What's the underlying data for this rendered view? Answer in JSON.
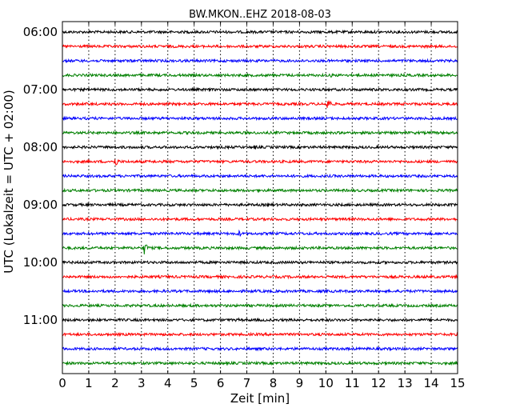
{
  "chart_data": {
    "type": "line",
    "title": "BW.MKON..EHZ 2018-08-03",
    "xlabel": "Zeit  [min]",
    "ylabel": "UTC (Lokalzeit = UTC + 02:00)",
    "xlim": [
      0,
      15
    ],
    "x_ticks": [
      0,
      1,
      2,
      3,
      4,
      5,
      6,
      7,
      8,
      9,
      10,
      11,
      12,
      13,
      14,
      15
    ],
    "y_tick_labels": [
      "06:00",
      "07:00",
      "08:00",
      "09:00",
      "10:00",
      "11:00"
    ],
    "y_tick_rows": [
      0,
      4,
      8,
      12,
      16,
      20
    ],
    "vertical_grid": "dotted",
    "traces_per_hour": 4,
    "row_minutes": 15,
    "colors": [
      "#000000",
      "#ff0000",
      "#0000ff",
      "#008000"
    ],
    "traces": [
      {
        "start": "06:00",
        "events": []
      },
      {
        "start": "06:15",
        "events": []
      },
      {
        "start": "06:30",
        "events": []
      },
      {
        "start": "06:45",
        "events": [
          {
            "t": 10.2,
            "amp": 0.3
          }
        ]
      },
      {
        "start": "07:00",
        "events": []
      },
      {
        "start": "07:15",
        "events": [
          {
            "t": 0.85,
            "amp": 0.3
          },
          {
            "t": 7.7,
            "amp": 0.2
          },
          {
            "t": 10.05,
            "amp": 1.0
          }
        ]
      },
      {
        "start": "07:30",
        "events": []
      },
      {
        "start": "07:45",
        "events": []
      },
      {
        "start": "08:00",
        "events": [
          {
            "t": 7.3,
            "amp": 0.4
          },
          {
            "t": 15.0,
            "amp": 0.45
          }
        ]
      },
      {
        "start": "08:15",
        "events": [
          {
            "t": 2.0,
            "amp": 0.75
          }
        ]
      },
      {
        "start": "08:30",
        "events": []
      },
      {
        "start": "08:45",
        "events": [
          {
            "t": 1.2,
            "amp": 0.2
          }
        ]
      },
      {
        "start": "09:00",
        "events": [
          {
            "t": 5.3,
            "amp": 0.2
          },
          {
            "t": 7.8,
            "amp": 0.35
          }
        ]
      },
      {
        "start": "09:15",
        "events": []
      },
      {
        "start": "09:30",
        "events": [
          {
            "t": 5.8,
            "amp": 0.2
          },
          {
            "t": 6.7,
            "amp": 0.55
          }
        ]
      },
      {
        "start": "09:45",
        "events": [
          {
            "t": 3.1,
            "amp": 1.0
          }
        ]
      },
      {
        "start": "10:00",
        "events": [
          {
            "t": 0.3,
            "amp": 0.25
          },
          {
            "t": 0.85,
            "amp": 0.3
          },
          {
            "t": 7.0,
            "amp": 0.2
          },
          {
            "t": 10.3,
            "amp": 0.25
          },
          {
            "t": 11.1,
            "amp": 0.2
          },
          {
            "t": 13.7,
            "amp": 0.2
          }
        ]
      },
      {
        "start": "10:15",
        "events": [
          {
            "t": 7.6,
            "amp": 0.15
          }
        ]
      },
      {
        "start": "10:30",
        "events": [
          {
            "t": 7.2,
            "amp": 0.3
          }
        ]
      },
      {
        "start": "10:45",
        "events": [
          {
            "t": 0.9,
            "amp": 0.15
          }
        ]
      },
      {
        "start": "11:00",
        "events": [
          {
            "t": 6.7,
            "amp": 0.35
          }
        ]
      },
      {
        "start": "11:15",
        "events": []
      },
      {
        "start": "11:30",
        "events": []
      },
      {
        "start": "11:45",
        "events": []
      }
    ]
  }
}
